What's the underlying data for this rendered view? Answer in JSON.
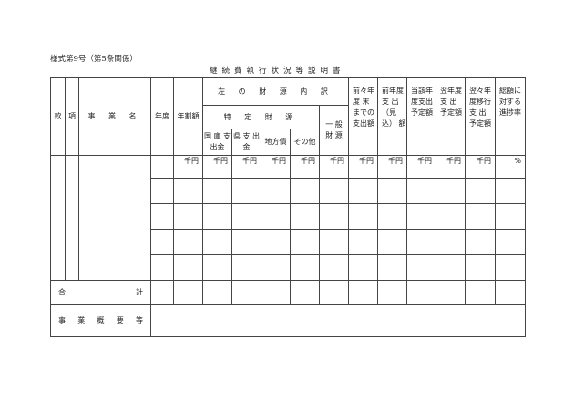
{
  "form_number": "様式第9号（第5条関係）",
  "title": "継続費執行状況等説明書",
  "headers": {
    "kan": "款",
    "kou": "項",
    "jigyo_name": "事 業 名",
    "nendo": "年度",
    "nenwari": "年割額",
    "zaigen_uchiwake": "左 の 財 源 内 訳",
    "tokutei_zaigen": "特 定 財 源",
    "ippan_zaigen": "一 般 財 源",
    "kokko": "国 庫 支出金",
    "ken": "県 支 出 金",
    "chihosai": "地方債",
    "sonota": "その他",
    "zenzen": "前々年 度 末 までの 支出額",
    "zennen": "前年度 支 出 （見込） 額",
    "tougai": "当該年 度支出 予定額",
    "yokunen": "翌年度 支 出 予定額",
    "yokuyoku": "翌々年 度移行 支 出 予定額",
    "shinchoku": "総額に 対する 進捗率"
  },
  "units": [
    "千円",
    "千円",
    "千円",
    "千円",
    "千円",
    "千円",
    "千円",
    "千円",
    "千円",
    "千円",
    "千円",
    "%"
  ],
  "total_label": "合 計",
  "summary_label": "事 業 概 要 等"
}
